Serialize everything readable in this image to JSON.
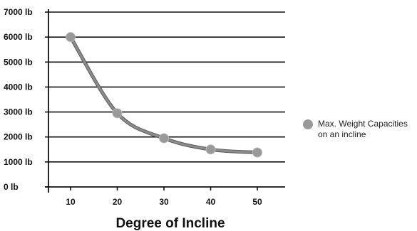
{
  "colors": {
    "line": "#8c8c8c",
    "line_outline": "#5a5a5a",
    "marker": "#999999",
    "marker_outline": "#b8b8b8",
    "grid": "#111111",
    "axis": "#111111"
  },
  "chart_data": {
    "type": "line",
    "title": "",
    "xlabel": "Degree of Incline",
    "ylabel": "",
    "x": [
      10,
      20,
      30,
      40,
      50
    ],
    "x_tick_labels": [
      "10",
      "20",
      "30",
      "40",
      "50"
    ],
    "y_tick_labels": [
      "0 lb",
      "1000 lb",
      "2000 lb",
      "3000 lb",
      "4000 lb",
      "5000 lb",
      "6000 lb",
      "7000 lb"
    ],
    "y_ticks": [
      0,
      1000,
      2000,
      3000,
      4000,
      5000,
      6000,
      7000
    ],
    "ylim": [
      0,
      7000
    ],
    "grid": true,
    "legend_position": "right",
    "series": [
      {
        "name_lines": [
          "Max. Weight Capacities",
          "on an incline"
        ],
        "values": [
          6000,
          2950,
          1950,
          1500,
          1380
        ]
      }
    ]
  }
}
